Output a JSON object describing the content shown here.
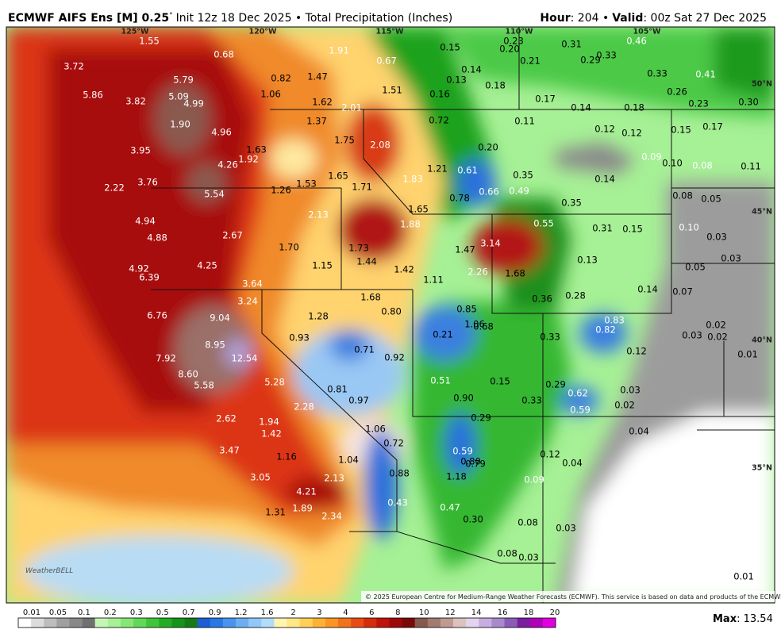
{
  "header": {
    "model": "ECMWF AIFS Ens [M] 0.25",
    "degree": "°",
    "description": "Init 12z 18 Dec 2025 • Total Precipitation (Inches)",
    "hour_label": "Hour",
    "hour_value": ": 204 •",
    "valid_label": "Valid",
    "valid_value": ": 00z Sat 27 Dec 2025"
  },
  "map": {
    "longitudes": [
      "125°W",
      "120°W",
      "115°W",
      "110°W",
      "105°W"
    ],
    "latitudes": [
      "50°N",
      "45°N",
      "40°N",
      "35°N"
    ],
    "values": [
      "1.55",
      "0.68",
      "1.91",
      "0.67",
      "0.15",
      "0.23",
      "0.20",
      "0.31",
      "0.46",
      "3.72",
      "0.21",
      "0.29",
      "0.33",
      "0.82",
      "1.47",
      "0.14",
      "0.13",
      "0.18",
      "0.33",
      "0.41",
      "5.79",
      "5.86",
      "5.09",
      "3.82",
      "4.99",
      "1.06",
      "1.51",
      "0.16",
      "0.17",
      "0.26",
      "0.30",
      "1.62",
      "2.01",
      "0.23",
      "0.14",
      "0.18",
      "1.37",
      "0.72",
      "0.11",
      "0.17",
      "1.90",
      "4.96",
      "0.12",
      "0.12",
      "0.15",
      "1.75",
      "2.08",
      "0.20",
      "3.95",
      "1.63",
      "1.92",
      "4.26",
      "0.09",
      "0.10",
      "0.08",
      "0.11",
      "1.21",
      "0.61",
      "2.22",
      "3.76",
      "1.65",
      "1.53",
      "1.71",
      "1.83",
      "0.35",
      "0.14",
      "5.54",
      "1.26",
      "0.66",
      "0.49",
      "0.78",
      "0.08",
      "0.05",
      "0.35",
      "1.65",
      "2.13",
      "4.94",
      "1.88",
      "3.14",
      "0.55",
      "0.31",
      "0.15",
      "0.10",
      "2.67",
      "4.88",
      "0.03",
      "1.70",
      "1.73",
      "1.47",
      "0.13",
      "0.03",
      "4.25",
      "1.15",
      "1.44",
      "1.42",
      "4.92",
      "2.26",
      "1.68",
      "0.05",
      "6.39",
      "1.11",
      "3.64",
      "0.14",
      "0.07",
      "1.68",
      "0.36",
      "0.28",
      "3.24",
      "0.85",
      "0.80",
      "6.76",
      "9.04",
      "1.28",
      "1.06",
      "0.68",
      "0.83",
      "0.02",
      "0.82",
      "0.21",
      "0.33",
      "0.93",
      "0.03",
      "0.02",
      "8.95",
      "0.71",
      "0.12",
      "0.01",
      "7.92",
      "12.54",
      "0.92",
      "8.60",
      "0.51",
      "0.15",
      "5.28",
      "0.29",
      "5.58",
      "0.81",
      "0.03",
      "0.62",
      "0.90",
      "0.97",
      "0.33",
      "2.28",
      "0.02",
      "0.59",
      "2.62",
      "0.29",
      "1.94",
      "1.06",
      "0.04",
      "1.42",
      "0.72",
      "3.47",
      "0.59",
      "0.12",
      "1.16",
      "1.04",
      "0.80",
      "0.79",
      "0.04",
      "0.88",
      "1.18",
      "3.05",
      "2.13",
      "0.09",
      "4.21",
      "0.43",
      "0.47",
      "1.31",
      "1.89",
      "2.34",
      "0.30",
      "0.08",
      "0.03",
      "0.08",
      "0.03",
      "0.01"
    ],
    "copyright": "© 2025 European Centre for Medium-Range Weather Forecasts (ECMWF). This service is based on data and products of the ECMWF.",
    "logo": "WeatherBELL"
  },
  "legend": {
    "ticks": [
      "0.01",
      "0.05",
      "0.1",
      "0.2",
      "0.3",
      "0.5",
      "0.7",
      "0.9",
      "1.2",
      "1.6",
      "2",
      "3",
      "4",
      "6",
      "8",
      "10",
      "12",
      "14",
      "16",
      "18",
      "20"
    ],
    "max_label": "Max",
    "max_value": ": 13.54"
  }
}
